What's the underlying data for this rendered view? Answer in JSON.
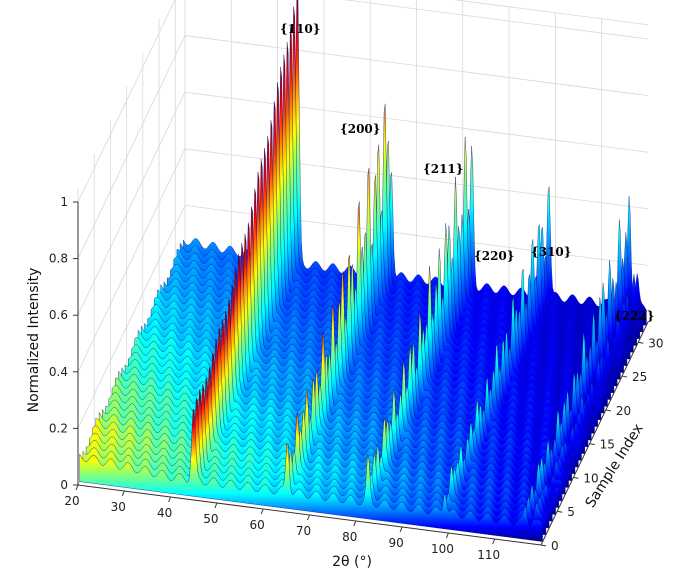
{
  "chart_data": {
    "type": "surface",
    "xlabel": "2θ (°)",
    "ylabel": "Sample Index",
    "zlabel": "Normalized Intensity",
    "xlim": [
      20,
      120
    ],
    "ylim": [
      0,
      33
    ],
    "zlim": [
      0,
      1
    ],
    "x_ticks": [
      20,
      30,
      40,
      50,
      60,
      70,
      80,
      90,
      100,
      110
    ],
    "y_ticks": [
      0,
      5,
      10,
      15,
      20,
      25,
      30
    ],
    "z_ticks": [
      0,
      0.2,
      0.4,
      0.6,
      0.8,
      1
    ],
    "z_tick_labels": [
      "0",
      "0.2",
      "0.4",
      "0.6",
      "0.8",
      "1"
    ],
    "colormap": "jet",
    "grid": true,
    "peaks": [
      {
        "label": "{110}",
        "two_theta": 44.6,
        "max_intensity": 1.0
      },
      {
        "label": "{200}",
        "two_theta": 64.9,
        "max_intensity": 0.55
      },
      {
        "label": "{211}",
        "two_theta": 82.3,
        "max_intensity": 0.45
      },
      {
        "label": "{220}",
        "two_theta": 98.9,
        "max_intensity": 0.3
      },
      {
        "label": "{310}",
        "two_theta": 116.3,
        "max_intensity": 0.3
      },
      {
        "label": "{222}",
        "two_theta": 118.0,
        "max_intensity": 0.12
      }
    ],
    "samples": 33,
    "background_intensity": 0.06
  }
}
